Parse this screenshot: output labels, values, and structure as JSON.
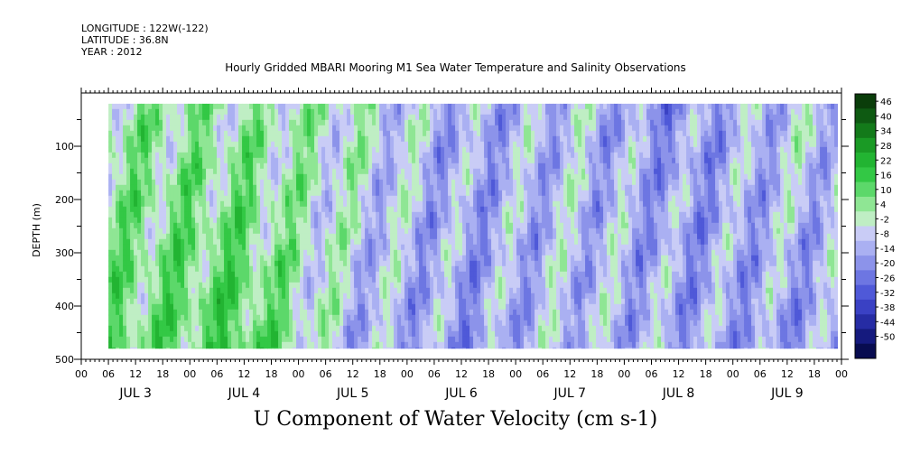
{
  "header": {
    "longitude": "LONGITUDE : 122W(-122)",
    "latitude": "LATITUDE : 36.8N",
    "year": "YEAR : 2012"
  },
  "chart_data": {
    "type": "heatmap",
    "title": "Hourly Gridded MBARI Mooring M1 Sea Water Temperature and Salinity Observations",
    "xlabel": "U Component of Water Velocity (cm s-1)",
    "ylabel": "DEPTH (m)",
    "ylim": [
      500,
      0
    ],
    "y_ticks": [
      100,
      200,
      300,
      400,
      500
    ],
    "x_tick_hours": [
      "00",
      "06",
      "12",
      "18",
      "00",
      "06",
      "12",
      "18",
      "00",
      "06",
      "12",
      "18",
      "00",
      "06",
      "12",
      "18",
      "00",
      "06",
      "12",
      "18",
      "00",
      "06",
      "12",
      "18",
      "00",
      "06",
      "12",
      "18",
      "00"
    ],
    "x_day_labels": [
      "JUL 3",
      "JUL 4",
      "JUL 5",
      "JUL 6",
      "JUL 7",
      "JUL 8",
      "JUL 9"
    ],
    "data_start": "JUL 3 06",
    "data_depth_range": [
      20,
      480
    ],
    "colorbar": {
      "labels": [
        "46",
        "40",
        "34",
        "28",
        "22",
        "16",
        "10",
        "4",
        "-2",
        "-8",
        "-14",
        "-20",
        "-26",
        "-32",
        "-38",
        "-44",
        "-50"
      ],
      "colors": [
        "#0a3d0a",
        "#0e5a12",
        "#137a1a",
        "#1a9a25",
        "#22b432",
        "#33c845",
        "#5cd86a",
        "#8fe694",
        "#bfeec4",
        "#c9ccf6",
        "#aab0f2",
        "#8c93ea",
        "#6d76e2",
        "#4f59d8",
        "#3a41c4",
        "#262ca4",
        "#151a7e",
        "#080c50"
      ]
    },
    "series": [
      {
        "day": "JUL 3",
        "mean_u_surface": 8,
        "mean_u_deep": 12
      },
      {
        "day": "JUL 4",
        "mean_u_surface": 6,
        "mean_u_deep": 18
      },
      {
        "day": "JUL 5",
        "mean_u_surface": 4,
        "mean_u_deep": -6
      },
      {
        "day": "JUL 6",
        "mean_u_surface": -8,
        "mean_u_deep": -10
      },
      {
        "day": "JUL 7",
        "mean_u_surface": -4,
        "mean_u_deep": -4
      },
      {
        "day": "JUL 8",
        "mean_u_surface": -12,
        "mean_u_deep": -8
      },
      {
        "day": "JUL 9",
        "mean_u_surface": -2,
        "mean_u_deep": -10
      }
    ]
  }
}
